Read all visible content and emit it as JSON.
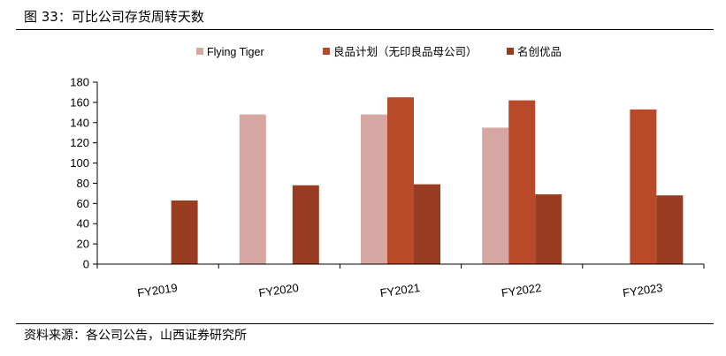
{
  "figure": {
    "title": "图 33：可比公司存货周转天数",
    "source": "资料来源：各公司公告，山西证券研究所"
  },
  "chart_data": {
    "type": "bar",
    "categories": [
      "FY2019",
      "FY2020",
      "FY2021",
      "FY2022",
      "FY2023"
    ],
    "series": [
      {
        "name": "Flying Tiger",
        "color": "#D6A7A2",
        "values": [
          null,
          148,
          148,
          135,
          null
        ]
      },
      {
        "name": "良品计划（无印良品母公司）",
        "color": "#B84A2A",
        "values": [
          null,
          null,
          165,
          162,
          153
        ]
      },
      {
        "name": "名创优品",
        "color": "#993D22",
        "values": [
          63,
          78,
          79,
          69,
          68
        ]
      }
    ],
    "ylim": [
      0,
      180
    ],
    "yticks": [
      0,
      20,
      40,
      60,
      80,
      100,
      120,
      140,
      160,
      180
    ],
    "legend": "top",
    "grid": false
  }
}
